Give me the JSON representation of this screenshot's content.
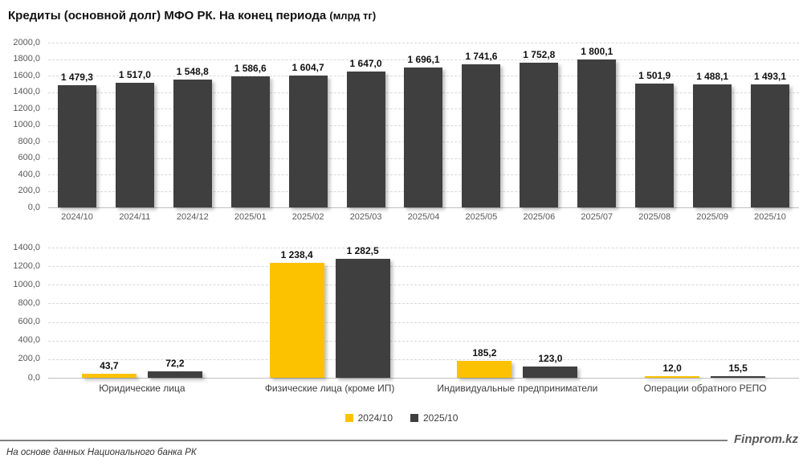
{
  "title": {
    "main": "Кредиты (основной долг) МФО РК. На конец периода",
    "unit": "(млрд тг)"
  },
  "footer": {
    "brand": "Finprom.kz",
    "source": "На основе данных Национального банка РК"
  },
  "colors": {
    "bar_dark": "#3f3f3f",
    "bar_yellow": "#fcc200",
    "grid": "#d8d8d8",
    "axis_text": "#595959"
  },
  "chart_data": [
    {
      "type": "bar",
      "title": "Кредиты (основной долг) МФО РК. На конец периода (млрд тг)",
      "categories": [
        "2024/10",
        "2024/11",
        "2024/12",
        "2025/01",
        "2025/02",
        "2025/03",
        "2025/04",
        "2025/05",
        "2025/06",
        "2025/07",
        "2025/08",
        "2025/09",
        "2025/10"
      ],
      "values": [
        1479.3,
        1517.0,
        1548.8,
        1586.6,
        1604.7,
        1647.0,
        1696.1,
        1741.6,
        1752.8,
        1800.1,
        1501.9,
        1488.1,
        1493.1
      ],
      "labels": [
        "1 479,3",
        "1 517,0",
        "1 548,8",
        "1 586,6",
        "1 604,7",
        "1 647,0",
        "1 696,1",
        "1 741,6",
        "1 752,8",
        "1 800,1",
        "1 501,9",
        "1 488,1",
        "1 493,1"
      ],
      "bar_color": "#3f3f3f",
      "xlabel": "",
      "ylabel": "",
      "ylim": [
        0,
        2000
      ],
      "ytick_step": 200,
      "grid": true
    },
    {
      "type": "bar",
      "categories": [
        "Юридические лица",
        "Физические лица (кроме ИП)",
        "Индивидуальные предприниматели",
        "Операции обратного РЕПО"
      ],
      "series": [
        {
          "name": "2024/10",
          "color": "#fcc200",
          "values": [
            43.7,
            1238.4,
            185.2,
            12.0
          ],
          "labels": [
            "43,7",
            "1 238,4",
            "185,2",
            "12,0"
          ]
        },
        {
          "name": "2025/10",
          "color": "#3f3f3f",
          "values": [
            72.2,
            1282.5,
            123.0,
            15.5
          ],
          "labels": [
            "72,2",
            "1 282,5",
            "123,0",
            "15,5"
          ]
        }
      ],
      "xlabel": "",
      "ylabel": "",
      "ylim": [
        0,
        1400
      ],
      "ytick_step": 200,
      "grid": true,
      "legend_position": "bottom"
    }
  ]
}
